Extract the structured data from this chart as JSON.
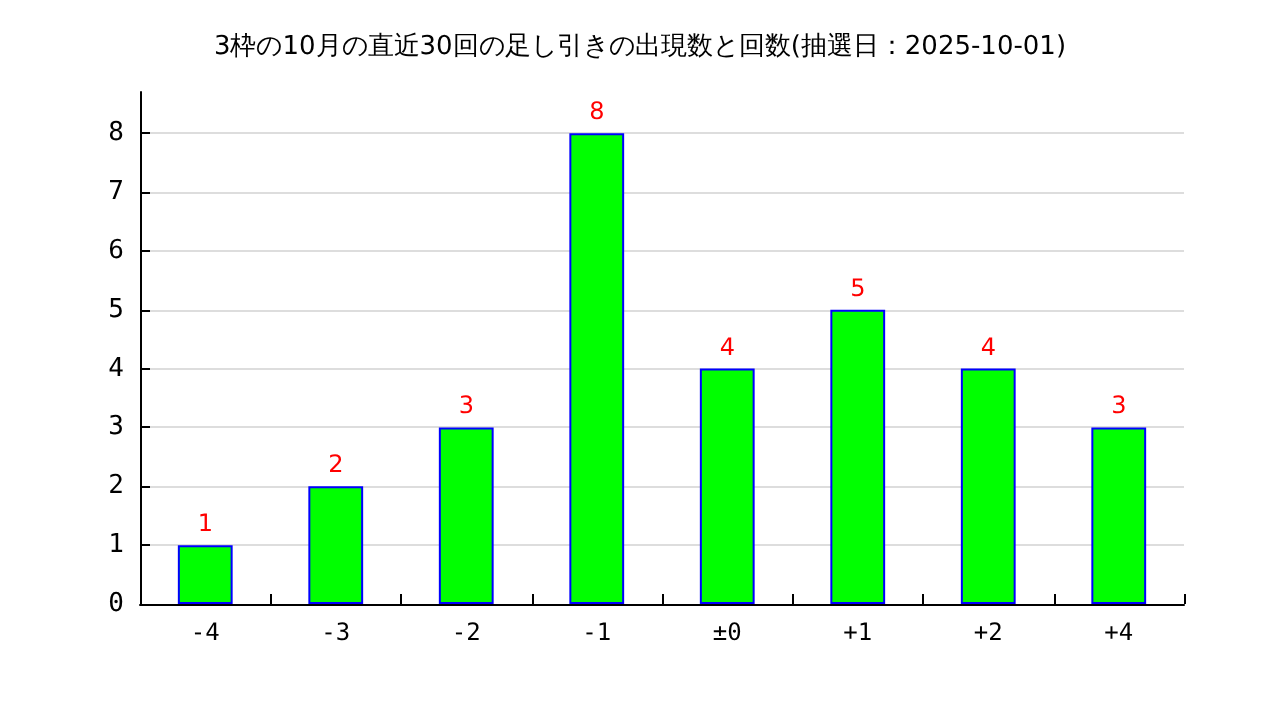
{
  "chart_data": {
    "type": "bar",
    "title": "3枠の10月の直近30回の足し引きの出現数と回数(抽選日：2025-10-01)",
    "categories": [
      "-4",
      "-3",
      "-2",
      "-1",
      "±0",
      "+1",
      "+2",
      "+4"
    ],
    "values": [
      1,
      2,
      3,
      8,
      4,
      5,
      4,
      3
    ],
    "color": "#00ff00",
    "ylim": [
      0,
      8.7
    ],
    "yticks": [
      0,
      1,
      2,
      3,
      4,
      5,
      6,
      7,
      8
    ],
    "grid": "y",
    "data_labels": true
  }
}
